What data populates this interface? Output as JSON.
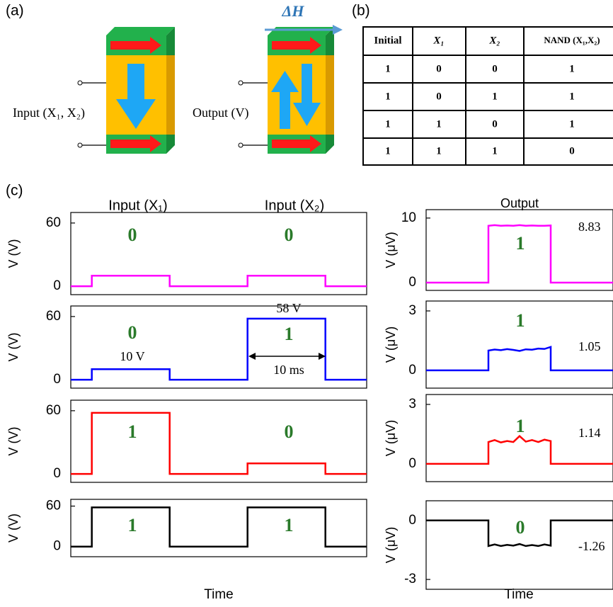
{
  "panel_labels": [
    "(a)",
    "(b)",
    "(c)"
  ],
  "diagram": {
    "input_label": "Input (X₁, X₂)",
    "output_label": "Output (V)",
    "field_label": "ΔH"
  },
  "table": {
    "header": [
      "Initial",
      "X₁",
      "X₂",
      "NAND (X₁,X₂)"
    ],
    "rows": [
      [
        "1",
        "0",
        "0",
        "1"
      ],
      [
        "1",
        "0",
        "1",
        "1"
      ],
      [
        "1",
        "1",
        "0",
        "1"
      ],
      [
        "1",
        "1",
        "1",
        "0"
      ]
    ]
  },
  "column_titles": [
    "Input (X₁)",
    "Input (X₂)",
    "Output"
  ],
  "chart_data": [
    {
      "type": "line",
      "ylabel": "V (V)",
      "xlim": [
        7.3,
        45.3
      ],
      "ylim": [
        -8,
        70
      ],
      "yticks": [
        0,
        60
      ],
      "x": [
        7.3,
        10,
        10,
        20,
        20,
        30,
        30,
        40,
        40,
        45.3
      ],
      "series": [
        {
          "color": "#ff00ff",
          "values": [
            0,
            0,
            10,
            10,
            0,
            0,
            10,
            10,
            0,
            0
          ]
        }
      ],
      "annotations": [
        "0",
        "0"
      ]
    },
    {
      "type": "line",
      "ylabel": "V (V)",
      "xlim": [
        7.3,
        45.3
      ],
      "ylim": [
        -8,
        70
      ],
      "yticks": [
        0,
        60
      ],
      "x": [
        7.3,
        10,
        10,
        20,
        20,
        30,
        30,
        40,
        40,
        45.3
      ],
      "series": [
        {
          "color": "#0000ff",
          "values": [
            0,
            0,
            10,
            10,
            0,
            0,
            58,
            58,
            0,
            0
          ]
        }
      ],
      "annotations": [
        "0",
        "1",
        "10 V",
        "58 V",
        "10 ms"
      ]
    },
    {
      "type": "line",
      "ylabel": "V (V)",
      "xlim": [
        7.3,
        45.3
      ],
      "ylim": [
        -8,
        70
      ],
      "yticks": [
        0,
        60
      ],
      "x": [
        7.3,
        10,
        10,
        20,
        20,
        30,
        30,
        40,
        40,
        45.3
      ],
      "series": [
        {
          "color": "#ff0000",
          "values": [
            0,
            0,
            58,
            58,
            0,
            0,
            10,
            10,
            0,
            0
          ]
        }
      ],
      "annotations": [
        "1",
        "0"
      ]
    },
    {
      "type": "line",
      "ylabel": "V (V)",
      "xlabel": "Time",
      "xlim": [
        7.3,
        45.3
      ],
      "ylim": [
        -15,
        70
      ],
      "yticks": [
        0,
        60
      ],
      "x": [
        7.3,
        10,
        10,
        20,
        20,
        30,
        30,
        40,
        40,
        45.3
      ],
      "series": [
        {
          "color": "#000000",
          "values": [
            0,
            0,
            58,
            58,
            0,
            0,
            58,
            58,
            0,
            0
          ]
        }
      ],
      "annotations": [
        "1",
        "1"
      ]
    },
    {
      "type": "line",
      "ylabel": "V (μV)",
      "xlim": [
        0,
        30
      ],
      "ylim": [
        -1.2,
        11.3
      ],
      "yticks": [
        0,
        10
      ],
      "x": [
        0,
        10,
        10,
        11,
        12,
        13,
        14,
        15,
        16,
        17,
        18,
        19,
        20,
        20,
        30
      ],
      "series": [
        {
          "color": "#ff00ff",
          "values": [
            0,
            0,
            8.8,
            8.9,
            8.8,
            8.85,
            8.8,
            8.9,
            8.8,
            8.85,
            8.8,
            8.8,
            8.85,
            0,
            0
          ]
        }
      ],
      "annotations": [
        "1",
        "8.83"
      ]
    },
    {
      "type": "line",
      "ylabel": "V (μV)",
      "xlim": [
        0,
        30
      ],
      "ylim": [
        -0.9,
        3.5
      ],
      "yticks": [
        0,
        3
      ],
      "x": [
        0,
        10,
        10,
        11,
        12,
        13,
        14,
        15,
        16,
        17,
        18,
        19,
        20,
        20,
        30
      ],
      "series": [
        {
          "color": "#0000ff",
          "values": [
            0,
            0,
            1.0,
            1.05,
            1.02,
            1.07,
            1.03,
            0.98,
            1.06,
            1.04,
            1.1,
            1.08,
            1.18,
            0,
            0
          ]
        }
      ],
      "annotations": [
        "1",
        "1.05"
      ]
    },
    {
      "type": "line",
      "ylabel": "V (μV)",
      "xlim": [
        0,
        30
      ],
      "ylim": [
        -0.9,
        3.5
      ],
      "yticks": [
        0,
        3
      ],
      "x": [
        0,
        10,
        10,
        11,
        12,
        13,
        14,
        15,
        16,
        17,
        18,
        19,
        20,
        20,
        30
      ],
      "series": [
        {
          "color": "#ff0000",
          "values": [
            0,
            0,
            1.1,
            1.2,
            1.08,
            1.15,
            1.1,
            1.4,
            1.12,
            1.2,
            1.1,
            1.22,
            1.15,
            0,
            0
          ]
        }
      ],
      "annotations": [
        "1",
        "1.14"
      ]
    },
    {
      "type": "line",
      "ylabel": "V (μV)",
      "xlabel": "Time",
      "xlim": [
        0,
        30
      ],
      "ylim": [
        -3.5,
        1
      ],
      "yticks": [
        -3,
        0
      ],
      "x": [
        0,
        10,
        10,
        11,
        12,
        13,
        14,
        15,
        16,
        17,
        18,
        19,
        20,
        20,
        30
      ],
      "series": [
        {
          "color": "#000000",
          "values": [
            0,
            0,
            -1.3,
            -1.22,
            -1.3,
            -1.24,
            -1.28,
            -1.2,
            -1.3,
            -1.25,
            -1.3,
            -1.22,
            -1.28,
            0,
            0
          ]
        }
      ],
      "annotations": [
        "0",
        "-1.26"
      ]
    }
  ]
}
